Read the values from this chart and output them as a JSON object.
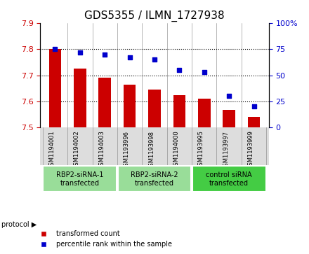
{
  "title": "GDS5355 / ILMN_1727938",
  "samples": [
    "GSM1194001",
    "GSM1194002",
    "GSM1194003",
    "GSM1193996",
    "GSM1193998",
    "GSM1194000",
    "GSM1193995",
    "GSM1193997",
    "GSM1193999"
  ],
  "bar_values": [
    7.8,
    7.725,
    7.69,
    7.665,
    7.645,
    7.625,
    7.61,
    7.568,
    7.54
  ],
  "dot_values": [
    75,
    72,
    70,
    67,
    65,
    55,
    53,
    30,
    20
  ],
  "ymin": 7.5,
  "ymax": 7.9,
  "y2min": 0,
  "y2max": 100,
  "bar_color": "#cc0000",
  "dot_color": "#0000cc",
  "yticks": [
    7.5,
    7.6,
    7.7,
    7.8,
    7.9
  ],
  "y2ticks": [
    0,
    25,
    50,
    75,
    100
  ],
  "grid_yticks": [
    7.6,
    7.7,
    7.8
  ],
  "groups": [
    {
      "label": "RBP2-siRNA-1\ntransfected",
      "start": 0,
      "end": 3
    },
    {
      "label": "RBP2-siRNA-2\ntransfected",
      "start": 3,
      "end": 6
    },
    {
      "label": "control siRNA\ntransfected",
      "start": 6,
      "end": 9
    }
  ],
  "group_color_light": "#99dd99",
  "group_color_dark": "#44cc44",
  "sample_bg": "#dddddd",
  "bar_width": 0.5,
  "base_value": 7.5,
  "legend_labels": [
    "transformed count",
    "percentile rank within the sample"
  ]
}
